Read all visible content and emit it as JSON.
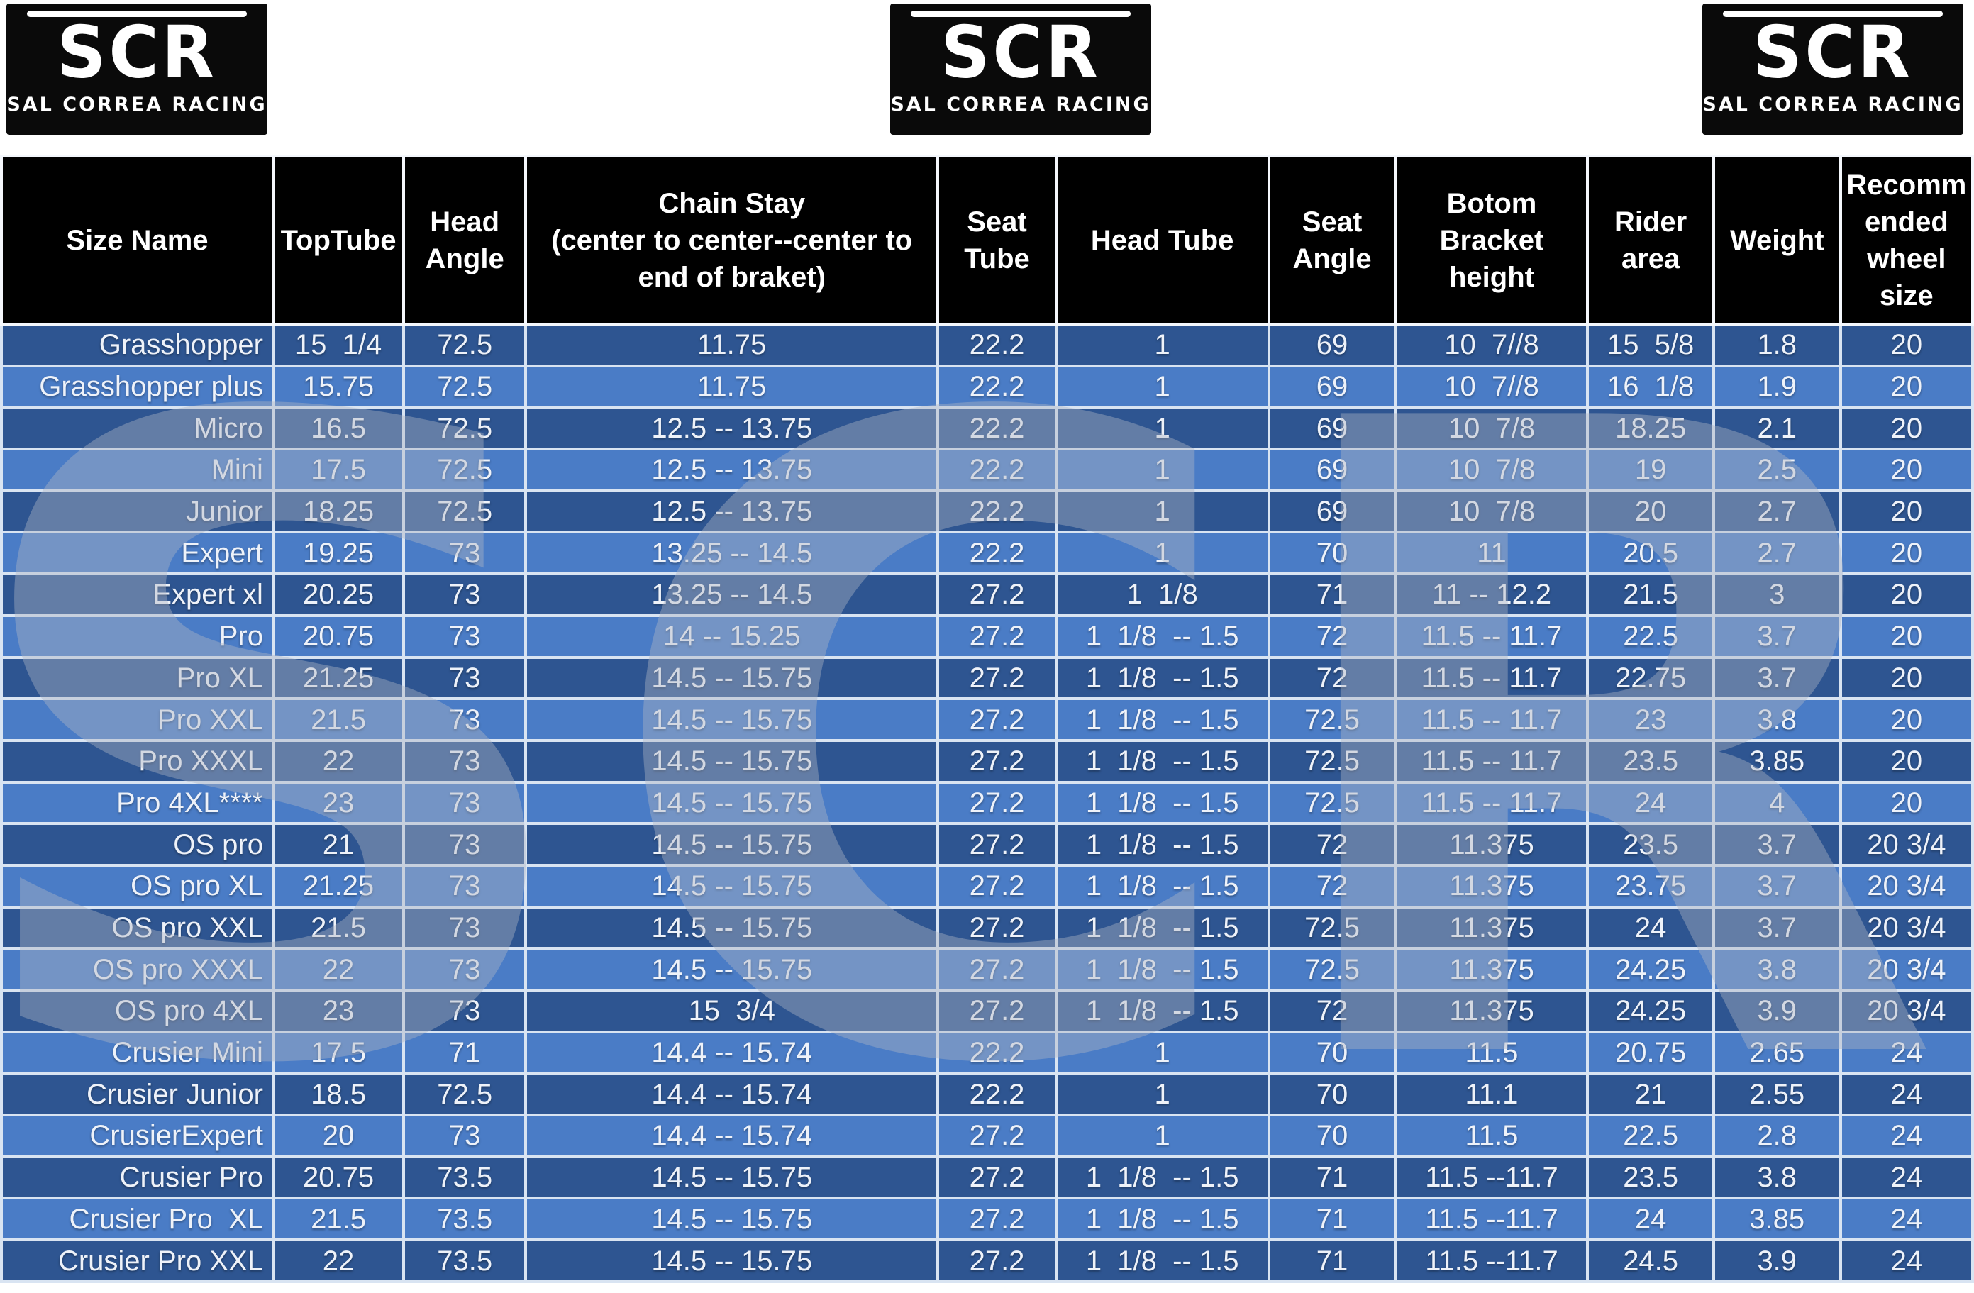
{
  "logos": [
    {
      "mark": "SCR",
      "subtitle": "SAL CORREA RACING"
    },
    {
      "mark": "SCR",
      "subtitle": "SAL CORREA RACING"
    },
    {
      "mark": "SCR",
      "subtitle": "SAL CORREA RACING"
    }
  ],
  "watermark": {
    "text": "SCR"
  },
  "colors": {
    "row_dark": "#2e5591",
    "row_light": "#4a7cc6",
    "grid": "#d9e4f2",
    "header_bg": "#000000",
    "header_text": "#ffffff",
    "cell_text": "#eef2f9",
    "page_bg": "#ffffff"
  },
  "table": {
    "col_widths_pct": [
      13.78,
      6.63,
      6.19,
      20.91,
      5.99,
      10.79,
      6.44,
      9.75,
      6.38,
      6.44,
      6.7
    ],
    "columns": [
      "Size Name",
      "TopTube",
      "Head\nAngle",
      "Chain Stay\n(center to center--center to\nend of braket)",
      "Seat\nTube",
      "Head Tube",
      "Seat\nAngle",
      "Botom\nBracket\nheight",
      "Rider\narea",
      "Weight",
      "Recomm\nended\nwheel\nsize"
    ],
    "rows": [
      [
        "Grasshopper",
        "15  1/4",
        "72.5",
        "11.75",
        "22.2",
        "1",
        "69",
        "10  7//8",
        "15  5/8",
        "1.8",
        "20"
      ],
      [
        "Grasshopper plus",
        "15.75",
        "72.5",
        "11.75",
        "22.2",
        "1",
        "69",
        "10  7//8",
        "16  1/8",
        "1.9",
        "20"
      ],
      [
        "Micro",
        "16.5",
        "72.5",
        "12.5 -- 13.75",
        "22.2",
        "1",
        "69",
        "10  7/8",
        "18.25",
        "2.1",
        "20"
      ],
      [
        "Mini",
        "17.5",
        "72.5",
        "12.5 -- 13.75",
        "22.2",
        "1",
        "69",
        "10  7/8",
        "19",
        "2.5",
        "20"
      ],
      [
        "Junior",
        "18.25",
        "72.5",
        "12.5 -- 13.75",
        "22.2",
        "1",
        "69",
        "10  7/8",
        "20",
        "2.7",
        "20"
      ],
      [
        "Expert",
        "19.25",
        "73",
        "13.25 -- 14.5",
        "22.2",
        "1",
        "70",
        "11",
        "20.5",
        "2.7",
        "20"
      ],
      [
        "Expert xl",
        "20.25",
        "73",
        "13.25 -- 14.5",
        "27.2",
        "1  1/8",
        "71",
        "11 -- 12.2",
        "21.5",
        "3",
        "20"
      ],
      [
        "Pro",
        "20.75",
        "73",
        "14 -- 15.25",
        "27.2",
        "1  1/8  -- 1.5",
        "72",
        "11.5 -- 11.7",
        "22.5",
        "3.7",
        "20"
      ],
      [
        "Pro XL",
        "21.25",
        "73",
        "14.5 -- 15.75",
        "27.2",
        "1  1/8  -- 1.5",
        "72",
        "11.5 -- 11.7",
        "22.75",
        "3.7",
        "20"
      ],
      [
        "Pro XXL",
        "21.5",
        "73",
        "14.5 -- 15.75",
        "27.2",
        "1  1/8  -- 1.5",
        "72.5",
        "11.5 -- 11.7",
        "23",
        "3.8",
        "20"
      ],
      [
        "Pro XXXL",
        "22",
        "73",
        "14.5 -- 15.75",
        "27.2",
        "1  1/8  -- 1.5",
        "72.5",
        "11.5 -- 11.7",
        "23.5",
        "3.85",
        "20"
      ],
      [
        "Pro 4XL****",
        "23",
        "73",
        "14.5 -- 15.75",
        "27.2",
        "1  1/8  -- 1.5",
        "72.5",
        "11.5 -- 11.7",
        "24",
        "4",
        "20"
      ],
      [
        "OS pro",
        "21",
        "73",
        "14.5 -- 15.75",
        "27.2",
        "1  1/8  -- 1.5",
        "72",
        "11.375",
        "23.5",
        "3.7",
        "20 3/4"
      ],
      [
        "OS pro XL",
        "21.25",
        "73",
        "14.5 -- 15.75",
        "27.2",
        "1  1/8  -- 1.5",
        "72",
        "11.375",
        "23.75",
        "3.7",
        "20 3/4"
      ],
      [
        "OS pro XXL",
        "21.5",
        "73",
        "14.5 -- 15.75",
        "27.2",
        "1  1/8  -- 1.5",
        "72.5",
        "11.375",
        "24",
        "3.7",
        "20 3/4"
      ],
      [
        "OS pro XXXL",
        "22",
        "73",
        "14.5 -- 15.75",
        "27.2",
        "1  1/8  -- 1.5",
        "72.5",
        "11.375",
        "24.25",
        "3.8",
        "20 3/4"
      ],
      [
        "OS pro 4XL",
        "23",
        "73",
        "15  3/4",
        "27.2",
        "1  1/8  -- 1.5",
        "72",
        "11.375",
        "24.25",
        "3.9",
        "20 3/4"
      ],
      [
        "Crusier Mini",
        "17.5",
        "71",
        "14.4 -- 15.74",
        "22.2",
        "1",
        "70",
        "11.5",
        "20.75",
        "2.65",
        "24"
      ],
      [
        "Crusier Junior",
        "18.5",
        "72.5",
        "14.4 -- 15.74",
        "22.2",
        "1",
        "70",
        "11.1",
        "21",
        "2.55",
        "24"
      ],
      [
        "CrusierExpert",
        "20",
        "73",
        "14.4 -- 15.74",
        "27.2",
        "1",
        "70",
        "11.5",
        "22.5",
        "2.8",
        "24"
      ],
      [
        "Crusier Pro",
        "20.75",
        "73.5",
        "14.5 -- 15.75",
        "27.2",
        "1  1/8  -- 1.5",
        "71",
        "11.5 --11.7",
        "23.5",
        "3.8",
        "24"
      ],
      [
        "Crusier Pro  XL",
        "21.5",
        "73.5",
        "14.5 -- 15.75",
        "27.2",
        "1  1/8  -- 1.5",
        "71",
        "11.5 --11.7",
        "24",
        "3.85",
        "24"
      ],
      [
        "Crusier Pro XXL",
        "22",
        "73.5",
        "14.5 -- 15.75",
        "27.2",
        "1  1/8  -- 1.5",
        "71",
        "11.5 --11.7",
        "24.5",
        "3.9",
        "24"
      ]
    ]
  }
}
